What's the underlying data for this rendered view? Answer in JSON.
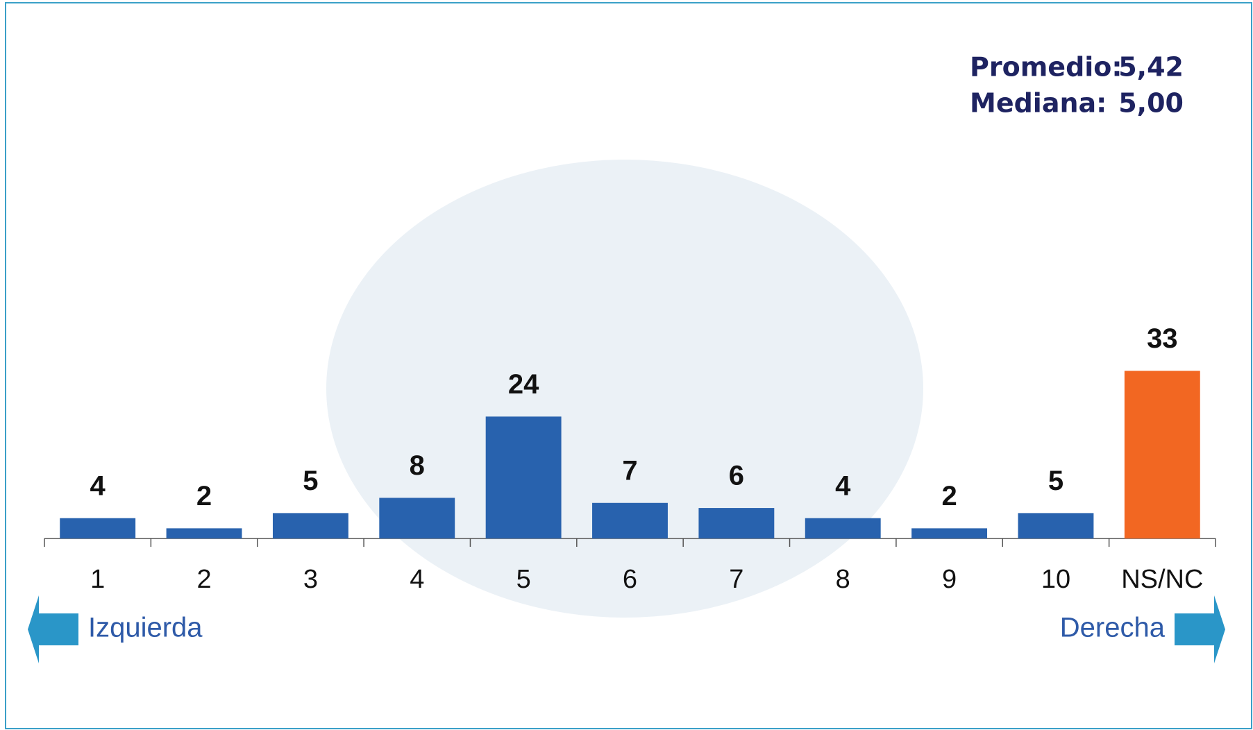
{
  "chart_data": {
    "type": "bar",
    "categories": [
      "1",
      "2",
      "3",
      "4",
      "5",
      "6",
      "7",
      "8",
      "9",
      "10",
      "NS/NC"
    ],
    "values": [
      4,
      2,
      5,
      8,
      24,
      7,
      6,
      4,
      2,
      5,
      33
    ],
    "colors": [
      "#2862ae",
      "#2862ae",
      "#2862ae",
      "#2862ae",
      "#2862ae",
      "#2862ae",
      "#2862ae",
      "#2862ae",
      "#2862ae",
      "#2862ae",
      "#f26722"
    ],
    "stats": [
      {
        "label": "Promedio:",
        "value": "5,42"
      },
      {
        "label": "Mediana:",
        "value": "5,00"
      }
    ],
    "left_label": "Izquierda",
    "right_label": "Derecha"
  }
}
